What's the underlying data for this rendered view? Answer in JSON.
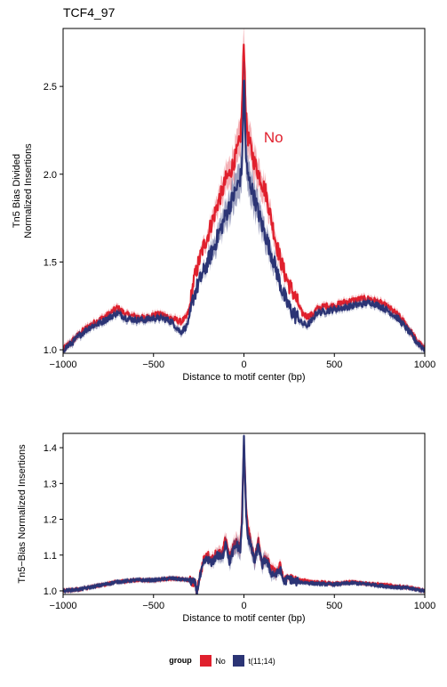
{
  "title": "TCF4_97",
  "legend": {
    "title": "group",
    "items": [
      {
        "label": "No",
        "color": "#e0202d"
      },
      {
        "label": "t(11;14)",
        "color": "#2b3475"
      }
    ]
  },
  "chart_data": [
    {
      "type": "line",
      "panel": "top",
      "xlabel": "Distance to motif center (bp)",
      "ylabel": [
        "Tn5 Bias Divided",
        "Normalized Insertions"
      ],
      "xlim": [
        -1000,
        1000
      ],
      "ylim": [
        0.98,
        2.83
      ],
      "xticks": [
        -1000,
        -500,
        0,
        500,
        1000
      ],
      "xtick_labels": [
        "−1000",
        "−500",
        "0",
        "500",
        "1000"
      ],
      "yticks": [
        1.0,
        1.5,
        2.0,
        2.5
      ],
      "ytick_labels": [
        "1.0",
        "1.5",
        "2.0",
        "2.5"
      ],
      "annotation": {
        "text": "No",
        "x": 110,
        "y": 2.18,
        "color": "#e0202d"
      },
      "series": [
        {
          "name": "No",
          "color": "#e0202d",
          "x": [
            -1000,
            -950,
            -900,
            -850,
            -800,
            -750,
            -700,
            -650,
            -600,
            -550,
            -500,
            -450,
            -400,
            -350,
            -320,
            -300,
            -280,
            -250,
            -220,
            -200,
            -180,
            -160,
            -140,
            -120,
            -100,
            -80,
            -60,
            -40,
            -20,
            -10,
            0,
            10,
            20,
            40,
            60,
            80,
            100,
            120,
            140,
            160,
            180,
            200,
            220,
            250,
            280,
            300,
            320,
            350,
            380,
            400,
            450,
            500,
            550,
            600,
            650,
            700,
            750,
            800,
            850,
            900,
            950,
            1000
          ],
          "y": [
            1.0,
            1.05,
            1.1,
            1.14,
            1.17,
            1.2,
            1.24,
            1.2,
            1.19,
            1.18,
            1.2,
            1.2,
            1.18,
            1.16,
            1.18,
            1.24,
            1.38,
            1.5,
            1.6,
            1.65,
            1.72,
            1.78,
            1.85,
            1.9,
            1.97,
            2.0,
            2.06,
            2.12,
            2.2,
            2.4,
            2.78,
            2.35,
            2.22,
            2.14,
            2.06,
            2.01,
            1.95,
            1.9,
            1.8,
            1.7,
            1.6,
            1.52,
            1.45,
            1.37,
            1.31,
            1.26,
            1.21,
            1.19,
            1.2,
            1.23,
            1.25,
            1.25,
            1.27,
            1.28,
            1.29,
            1.29,
            1.27,
            1.24,
            1.2,
            1.14,
            1.06,
            1.0
          ]
        },
        {
          "name": "t(11;14)",
          "color": "#2b3475",
          "x": [
            -1000,
            -950,
            -900,
            -850,
            -800,
            -750,
            -700,
            -650,
            -600,
            -550,
            -500,
            -450,
            -400,
            -350,
            -320,
            -300,
            -280,
            -250,
            -220,
            -200,
            -180,
            -160,
            -140,
            -120,
            -100,
            -80,
            -60,
            -40,
            -20,
            -10,
            0,
            10,
            20,
            40,
            60,
            80,
            100,
            120,
            140,
            160,
            180,
            200,
            220,
            250,
            280,
            300,
            320,
            350,
            380,
            400,
            450,
            500,
            550,
            600,
            650,
            700,
            750,
            800,
            850,
            900,
            950,
            1000
          ],
          "y": [
            1.0,
            1.04,
            1.09,
            1.13,
            1.15,
            1.18,
            1.21,
            1.18,
            1.17,
            1.17,
            1.18,
            1.18,
            1.16,
            1.1,
            1.13,
            1.18,
            1.3,
            1.38,
            1.45,
            1.5,
            1.55,
            1.6,
            1.66,
            1.71,
            1.77,
            1.82,
            1.87,
            1.92,
            1.98,
            2.05,
            2.6,
            2.12,
            1.99,
            1.93,
            1.86,
            1.78,
            1.71,
            1.65,
            1.58,
            1.52,
            1.45,
            1.38,
            1.31,
            1.24,
            1.2,
            1.18,
            1.15,
            1.14,
            1.17,
            1.21,
            1.22,
            1.23,
            1.24,
            1.25,
            1.26,
            1.27,
            1.25,
            1.22,
            1.18,
            1.12,
            1.05,
            1.0
          ]
        }
      ]
    },
    {
      "type": "line",
      "panel": "bottom",
      "xlabel": "Distance to motif center (bp)",
      "ylabel": [
        "Tn5−Bias Normalized Insertions"
      ],
      "xlim": [
        -1000,
        1000
      ],
      "ylim": [
        0.99,
        1.44
      ],
      "xticks": [
        -1000,
        -500,
        0,
        500,
        1000
      ],
      "xtick_labels": [
        "−1000",
        "−500",
        "0",
        "500",
        "1000"
      ],
      "yticks": [
        1.0,
        1.1,
        1.2,
        1.3,
        1.4
      ],
      "ytick_labels": [
        "1.0",
        "1.1",
        "1.2",
        "1.3",
        "1.4"
      ],
      "series": [
        {
          "name": "No",
          "color": "#e0202d",
          "x": [
            -1000,
            -900,
            -800,
            -700,
            -600,
            -500,
            -400,
            -300,
            -270,
            -260,
            -250,
            -220,
            -200,
            -180,
            -150,
            -120,
            -100,
            -80,
            -60,
            -40,
            -20,
            -10,
            0,
            10,
            20,
            40,
            60,
            80,
            100,
            120,
            150,
            180,
            200,
            220,
            250,
            280,
            300,
            400,
            500,
            600,
            700,
            800,
            900,
            1000
          ],
          "y": [
            1.0,
            1.005,
            1.015,
            1.025,
            1.03,
            1.03,
            1.035,
            1.03,
            1.02,
            0.997,
            1.03,
            1.09,
            1.1,
            1.085,
            1.11,
            1.1,
            1.15,
            1.09,
            1.12,
            1.14,
            1.12,
            1.22,
            1.41,
            1.26,
            1.18,
            1.13,
            1.09,
            1.14,
            1.08,
            1.1,
            1.06,
            1.05,
            1.07,
            1.03,
            1.04,
            1.03,
            1.03,
            1.025,
            1.02,
            1.025,
            1.02,
            1.015,
            1.01,
            1.0
          ]
        },
        {
          "name": "t(11;14)",
          "color": "#2b3475",
          "x": [
            -1000,
            -900,
            -800,
            -700,
            -600,
            -500,
            -400,
            -300,
            -270,
            -260,
            -250,
            -220,
            -200,
            -180,
            -150,
            -120,
            -100,
            -80,
            -60,
            -40,
            -20,
            -10,
            0,
            10,
            20,
            40,
            60,
            80,
            100,
            120,
            150,
            180,
            200,
            220,
            250,
            280,
            300,
            400,
            500,
            600,
            700,
            800,
            900,
            1000
          ],
          "y": [
            1.0,
            1.005,
            1.015,
            1.025,
            1.03,
            1.03,
            1.035,
            1.03,
            1.02,
            0.995,
            1.025,
            1.08,
            1.09,
            1.075,
            1.1,
            1.09,
            1.14,
            1.08,
            1.11,
            1.13,
            1.11,
            1.2,
            1.43,
            1.24,
            1.16,
            1.12,
            1.08,
            1.13,
            1.07,
            1.09,
            1.05,
            1.045,
            1.06,
            1.025,
            1.035,
            1.025,
            1.025,
            1.02,
            1.018,
            1.022,
            1.018,
            1.012,
            1.008,
            1.0
          ]
        }
      ]
    }
  ]
}
